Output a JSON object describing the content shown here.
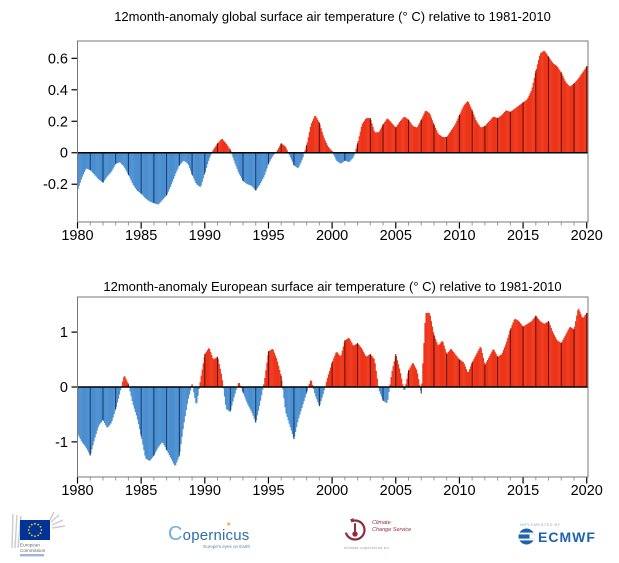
{
  "chart_data": [
    {
      "type": "bar",
      "title": "12month-anomaly global surface air temperature (° C) relative to 1981-2010",
      "ylabel": "",
      "xlabel": "",
      "x_start": 1980,
      "x_step_years": 0.333333,
      "x_end": 2020.083,
      "xlim": [
        1980,
        2020.1
      ],
      "ylim": [
        -0.44,
        0.71
      ],
      "x_ticks": [
        1980,
        1985,
        1990,
        1995,
        2000,
        2005,
        2010,
        2015,
        2020
      ],
      "x_tick_labels": [
        "1980",
        "1985",
        "1990",
        "1995",
        "2000",
        "2005",
        "2010",
        "2015",
        "2020"
      ],
      "x_minor_tick_step": 1,
      "y_ticks": [
        0.6,
        0.4,
        0.2,
        0,
        -0.2
      ],
      "y_tick_labels": [
        "0.6",
        "0.4",
        "0.2",
        "0",
        "-0.2"
      ],
      "values": [
        -0.24,
        -0.16,
        -0.1,
        -0.11,
        -0.14,
        -0.17,
        -0.19,
        -0.15,
        -0.12,
        -0.07,
        -0.06,
        -0.09,
        -0.14,
        -0.2,
        -0.24,
        -0.26,
        -0.29,
        -0.31,
        -0.32,
        -0.33,
        -0.3,
        -0.27,
        -0.21,
        -0.14,
        -0.08,
        -0.05,
        -0.07,
        -0.14,
        -0.2,
        -0.22,
        -0.13,
        -0.04,
        0.02,
        0.06,
        0.09,
        0.06,
        0.02,
        -0.06,
        -0.13,
        -0.18,
        -0.2,
        -0.21,
        -0.24,
        -0.2,
        -0.15,
        -0.07,
        -0.02,
        0.01,
        0.06,
        0.04,
        -0.02,
        -0.08,
        -0.1,
        -0.04,
        0.05,
        0.18,
        0.24,
        0.19,
        0.1,
        0.04,
        0.01,
        -0.05,
        -0.07,
        -0.05,
        -0.06,
        -0.03,
        0.06,
        0.18,
        0.22,
        0.22,
        0.13,
        0.13,
        0.18,
        0.22,
        0.19,
        0.16,
        0.2,
        0.23,
        0.21,
        0.17,
        0.16,
        0.21,
        0.27,
        0.25,
        0.18,
        0.12,
        0.1,
        0.1,
        0.14,
        0.18,
        0.24,
        0.3,
        0.33,
        0.27,
        0.2,
        0.16,
        0.17,
        0.2,
        0.23,
        0.22,
        0.24,
        0.27,
        0.26,
        0.28,
        0.3,
        0.32,
        0.34,
        0.4,
        0.52,
        0.63,
        0.65,
        0.61,
        0.57,
        0.55,
        0.51,
        0.45,
        0.42,
        0.44,
        0.47,
        0.51,
        0.55
      ]
    },
    {
      "type": "bar",
      "title": "12month-anomaly European surface air temperature (° C) relative to 1981-2010",
      "ylabel": "",
      "xlabel": "",
      "x_start": 1980,
      "x_step_years": 0.333333,
      "x_end": 2020.083,
      "xlim": [
        1980,
        2020.1
      ],
      "ylim": [
        -1.64,
        1.64
      ],
      "x_ticks": [
        1980,
        1985,
        1990,
        1995,
        2000,
        2005,
        2010,
        2015,
        2020
      ],
      "x_tick_labels": [
        "1980",
        "1985",
        "1990",
        "1995",
        "2000",
        "2005",
        "2010",
        "2015",
        "2020"
      ],
      "x_minor_tick_step": 1,
      "y_ticks": [
        1,
        0,
        -1
      ],
      "y_tick_labels": [
        "1",
        "0",
        "-1"
      ],
      "values": [
        -0.85,
        -1.0,
        -1.1,
        -1.25,
        -0.95,
        -0.7,
        -0.6,
        -0.75,
        -0.65,
        -0.4,
        -0.1,
        0.22,
        0.05,
        -0.3,
        -0.55,
        -0.9,
        -1.3,
        -1.35,
        -1.25,
        -1.1,
        -1.0,
        -1.15,
        -1.3,
        -1.45,
        -1.25,
        -0.7,
        -0.25,
        0.05,
        -0.35,
        0.15,
        0.6,
        0.72,
        0.5,
        0.55,
        0.2,
        -0.4,
        -0.45,
        -0.15,
        0.1,
        -0.1,
        -0.3,
        -0.45,
        -0.65,
        -0.3,
        0.1,
        0.65,
        0.7,
        0.5,
        0.2,
        -0.45,
        -0.7,
        -0.95,
        -0.6,
        -0.35,
        -0.1,
        0.15,
        -0.15,
        -0.35,
        -0.1,
        0.2,
        0.45,
        0.65,
        0.55,
        0.85,
        0.9,
        0.75,
        0.8,
        0.7,
        0.55,
        0.6,
        0.5,
        -0.05,
        -0.25,
        -0.3,
        0.25,
        0.6,
        0.3,
        -0.1,
        0.3,
        0.45,
        0.3,
        -0.12,
        1.35,
        1.35,
        0.95,
        0.75,
        0.85,
        0.6,
        0.7,
        0.6,
        0.5,
        0.45,
        0.25,
        0.45,
        0.6,
        0.75,
        0.4,
        0.55,
        0.7,
        0.55,
        0.6,
        0.8,
        1.05,
        1.25,
        1.2,
        1.1,
        1.15,
        1.2,
        1.3,
        1.2,
        1.15,
        1.2,
        1.0,
        0.85,
        0.8,
        0.95,
        1.1,
        1.05,
        1.45,
        1.25,
        1.35
      ]
    }
  ],
  "colors": {
    "positive_fill": "#ed3419",
    "positive_line": "#5f1007",
    "negative_fill": "#4a8fd0",
    "negative_line": "#17356e",
    "zero_line": "#000000",
    "frame": "#7a7a7a",
    "tick_major": "#000000",
    "tick_minor": "#999999"
  },
  "footer": {
    "eu_logo": {
      "line1": "European",
      "line2": "Commission",
      "flag_blue": "#003399",
      "star_yellow": "#ffcc00"
    },
    "copernicus_logo": {
      "name": "Copernicus",
      "tagline": "Europe's eyes on Earth",
      "blue": "#2f6db0",
      "star_orange": "#f59f1e"
    },
    "c3s_logo": {
      "line1": "Climate",
      "line2": "Change Service",
      "url": "climate.copernicus.eu",
      "maroon": "#8e2e3c"
    },
    "ecmwf_logo": {
      "implemented_by": "IMPLEMENTED BY",
      "name": "ECMWF",
      "blue": "#1e63ae"
    }
  }
}
